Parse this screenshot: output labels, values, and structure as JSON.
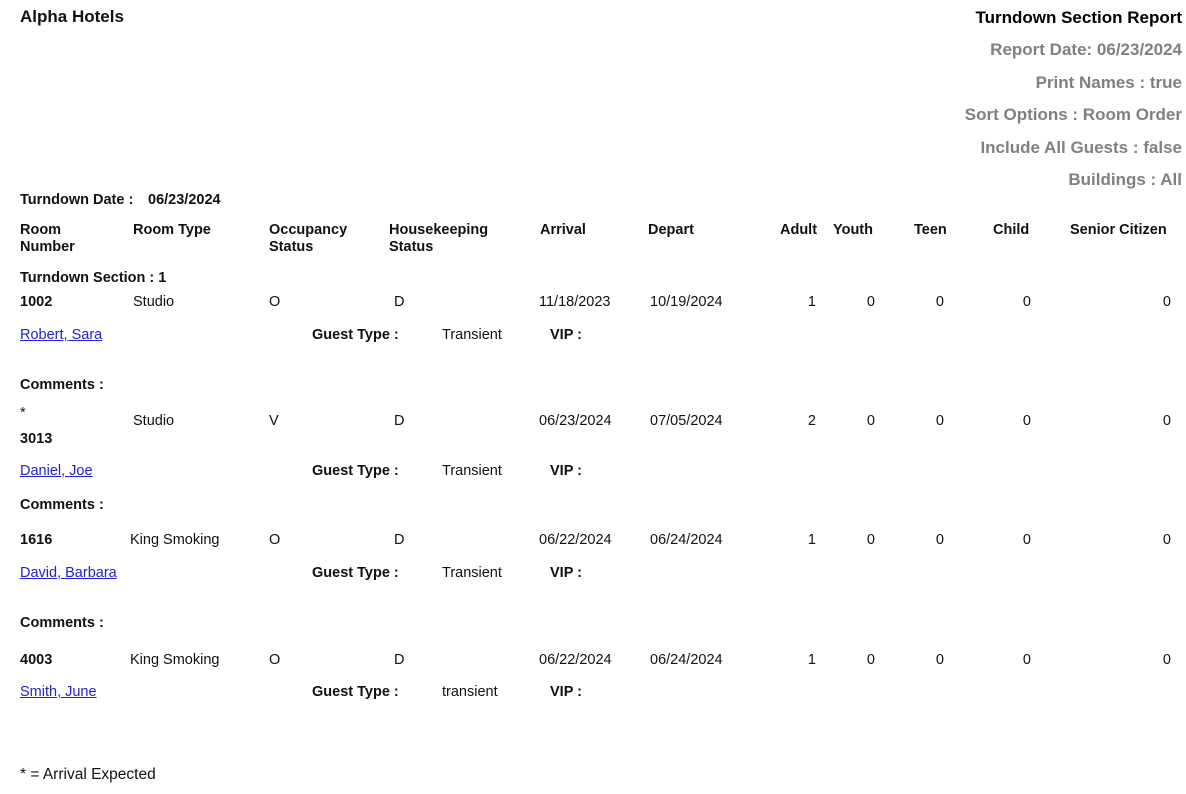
{
  "company": "Alpha Hotels",
  "report_title": "Turndown Section Report",
  "report_params": [
    "Report Date: 06/23/2024",
    "Print Names : true",
    "Sort Options : Room Order",
    "Include All Guests : false",
    "Buildings : All"
  ],
  "turndown_date_label": "Turndown Date :",
  "turndown_date": "06/23/2024",
  "columns": {
    "room_number": [
      "Room",
      "Number"
    ],
    "room_type": "Room Type",
    "occupancy_status": [
      "Occupancy",
      "Status"
    ],
    "housekeeping_status": [
      "Housekeeping",
      "Status"
    ],
    "arrival": "Arrival",
    "depart": "Depart",
    "adult": "Adult",
    "youth": "Youth",
    "teen": "Teen",
    "child": "Child",
    "senior": "Senior Citizen"
  },
  "section_label": "Turndown Section : 1",
  "guest_type_label": "Guest Type :",
  "vip_label": "VIP :",
  "comments_label": "Comments :",
  "rooms": [
    {
      "marker": "",
      "room": "1002",
      "type": "Studio",
      "occ": "O",
      "hk": "D",
      "arrival": "11/18/2023",
      "depart": "10/19/2024",
      "adult": "1",
      "youth": "0",
      "teen": "0",
      "child": "0",
      "senior": "0",
      "guest": "Robert, Sara",
      "guest_type": "Transient",
      "vip": "",
      "has_comments": true
    },
    {
      "marker": "*",
      "room": "3013",
      "type": "Studio",
      "occ": "V",
      "hk": "D",
      "arrival": "06/23/2024",
      "depart": "07/05/2024",
      "adult": "2",
      "youth": "0",
      "teen": "0",
      "child": "0",
      "senior": "0",
      "guest": "Daniel, Joe",
      "guest_type": "Transient",
      "vip": "",
      "has_comments": true
    },
    {
      "marker": "",
      "room": "1616",
      "type": "King Smoking",
      "occ": "O",
      "hk": "D",
      "arrival": "06/22/2024",
      "depart": "06/24/2024",
      "adult": "1",
      "youth": "0",
      "teen": "0",
      "child": "0",
      "senior": "0",
      "guest": "David, Barbara",
      "guest_type": "Transient",
      "vip": "",
      "has_comments": true
    },
    {
      "marker": "",
      "room": "4003",
      "type": "King Smoking",
      "occ": "O",
      "hk": "D",
      "arrival": "06/22/2024",
      "depart": "06/24/2024",
      "adult": "1",
      "youth": "0",
      "teen": "0",
      "child": "0",
      "senior": "0",
      "guest": "Smith, June",
      "guest_type": "transient",
      "vip": "",
      "has_comments": false
    }
  ],
  "footer_note": "* = Arrival Expected"
}
